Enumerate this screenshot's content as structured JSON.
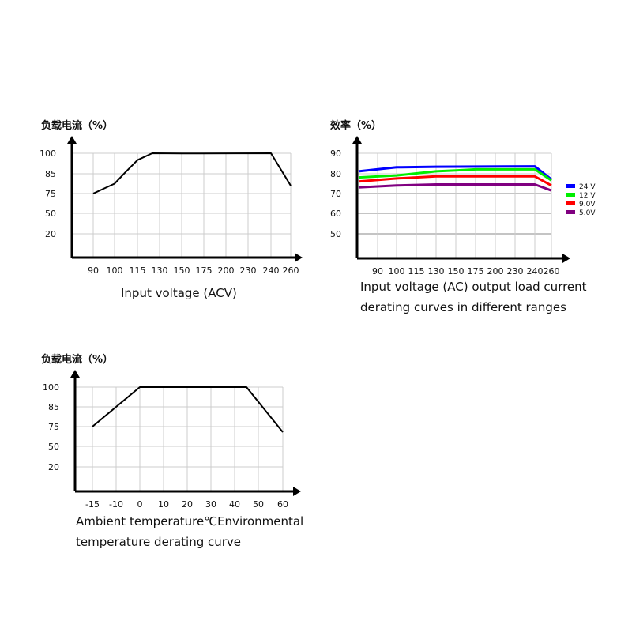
{
  "chart_data": [
    {
      "type": "line",
      "ylabel": "负载电流（%）",
      "xlabel": "Input voltage (ACV)",
      "x_ticks": [
        90,
        100,
        115,
        130,
        150,
        175,
        200,
        230,
        240,
        260
      ],
      "y_ticks": [
        20,
        50,
        75,
        85,
        100
      ],
      "grid": true,
      "series": [
        {
          "color": "#000000",
          "points": [
            [
              90,
              75
            ],
            [
              100,
              80
            ],
            [
              107,
              86
            ],
            [
              115,
              95
            ],
            [
              125,
              100
            ],
            [
              150,
              99.8
            ],
            [
              240,
              100
            ],
            [
              260,
              79
            ]
          ]
        }
      ]
    },
    {
      "type": "line",
      "ylabel": "效率（%）",
      "xlabel": "Input voltage (AC) output load current derating curves in different ranges",
      "x_ticks": [
        90,
        100,
        115,
        130,
        150,
        175,
        200,
        230,
        240,
        260
      ],
      "y_ticks": [
        50,
        60,
        70,
        80,
        90
      ],
      "grid": true,
      "legend_position": "right",
      "series": [
        {
          "name": "24 V",
          "color": "#0000ff",
          "points": [
            [
              80,
              81
            ],
            [
              100,
              83
            ],
            [
              130,
              83.3
            ],
            [
              240,
              83.5
            ],
            [
              260,
              77
            ]
          ]
        },
        {
          "name": "12 V",
          "color": "#00ee00",
          "points": [
            [
              80,
              78
            ],
            [
              100,
              79
            ],
            [
              115,
              80
            ],
            [
              130,
              81
            ],
            [
              150,
              81.5
            ],
            [
              175,
              82
            ],
            [
              240,
              82
            ],
            [
              260,
              76.5
            ]
          ]
        },
        {
          "name": "9.0V",
          "color": "#ff0000",
          "points": [
            [
              80,
              76
            ],
            [
              100,
              77.5
            ],
            [
              130,
              78.5
            ],
            [
              240,
              78.5
            ],
            [
              260,
              74
            ]
          ]
        },
        {
          "name": "5.0V",
          "color": "#800080",
          "points": [
            [
              80,
              73
            ],
            [
              100,
              74
            ],
            [
              130,
              74.5
            ],
            [
              240,
              74.5
            ],
            [
              260,
              71.5
            ]
          ]
        }
      ]
    },
    {
      "type": "line",
      "ylabel": "负载电流（%）",
      "xlabel": "Ambient temperature℃Environmental temperature derating curve",
      "x_ticks": [
        -15,
        -10,
        0,
        10,
        20,
        30,
        40,
        50,
        60
      ],
      "y_ticks": [
        20,
        50,
        75,
        85,
        100
      ],
      "grid": true,
      "series": [
        {
          "color": "#000000",
          "points": [
            [
              -15,
              75
            ],
            [
              0,
              100
            ],
            [
              45,
              100
            ],
            [
              60,
              68
            ]
          ]
        }
      ]
    }
  ],
  "captions": {
    "c1": "Input voltage (ACV)",
    "c2a": "Input voltage (AC) output load current",
    "c2b": "derating curves in different ranges",
    "c3a": "Ambient temperature℃Environmental",
    "c3b": "temperature derating curve"
  }
}
